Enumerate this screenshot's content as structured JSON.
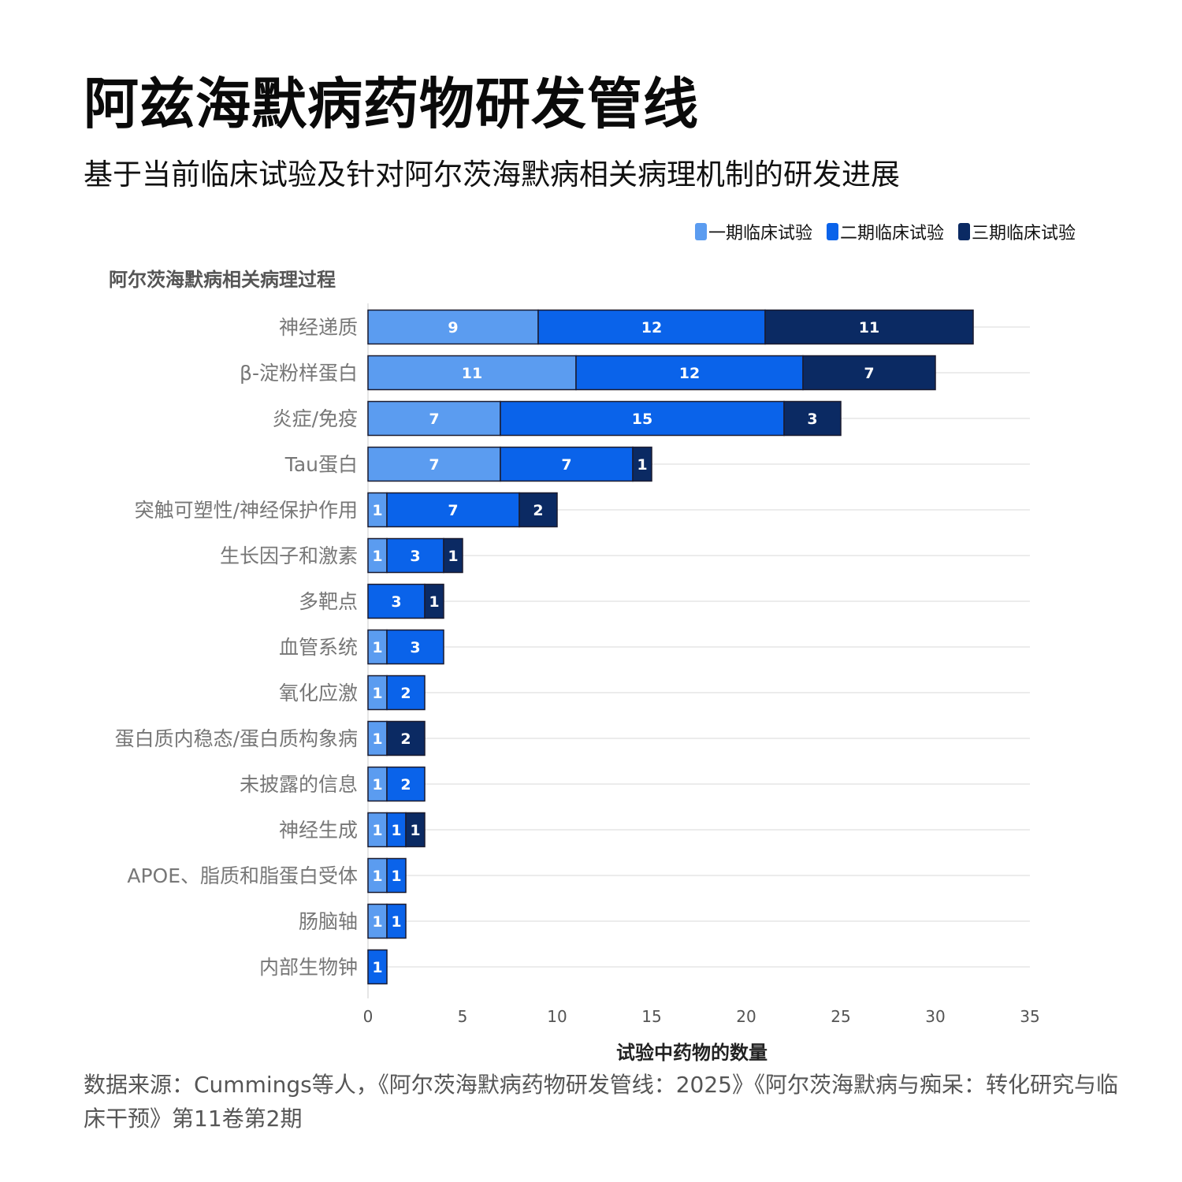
{
  "header": {
    "title": "阿兹海默病药物研发管线",
    "subtitle": "基于当前临床试验及针对阿尔茨海默病相关病理机制的研发进展"
  },
  "colors": {
    "phase1": "#5b9cf0",
    "phase2": "#0a63ea",
    "phase3": "#0b2a63",
    "grid": "#ececec",
    "category_text": "#777777",
    "tick_text": "#555555"
  },
  "legend": [
    {
      "label": "一期临床试验",
      "color": "#5b9cf0"
    },
    {
      "label": "二期临床试验",
      "color": "#0a63ea"
    },
    {
      "label": "三期临床试验",
      "color": "#0b2a63"
    }
  ],
  "source": "数据来源：Cummings等人，《阿尔茨海默病药物研发管线：2025》《阿尔茨海默病与痴呆：转化研究与临床干预》第11卷第2期",
  "chart_data": {
    "type": "bar",
    "orientation": "horizontal",
    "stacked": true,
    "ylabel": "阿尔茨海默病相关病理过程",
    "xlabel": "试验中药物的数量",
    "xlim": [
      0,
      35
    ],
    "xticks": [
      0,
      5,
      10,
      15,
      20,
      25,
      30,
      35
    ],
    "grid": true,
    "legend_position": "top-right",
    "categories": [
      "神经递质",
      "β-淀粉样蛋白",
      "炎症/免疫",
      "Tau蛋白",
      "突触可塑性/神经保护作用",
      "生长因子和激素",
      "多靶点",
      "血管系统",
      "氧化应激",
      "蛋白质内稳态/蛋白质构象病",
      "未披露的信息",
      "神经生成",
      "APOE、脂质和脂蛋白受体",
      "肠脑轴",
      "内部生物钟"
    ],
    "series": [
      {
        "name": "一期临床试验",
        "values": [
          9,
          11,
          7,
          7,
          1,
          1,
          0,
          1,
          1,
          1,
          1,
          1,
          1,
          1,
          0
        ]
      },
      {
        "name": "二期临床试验",
        "values": [
          12,
          12,
          15,
          7,
          7,
          3,
          3,
          3,
          2,
          0,
          2,
          1,
          1,
          1,
          1
        ]
      },
      {
        "name": "三期临床试验",
        "values": [
          11,
          7,
          3,
          1,
          2,
          1,
          1,
          0,
          0,
          2,
          0,
          1,
          0,
          0,
          0
        ]
      }
    ]
  }
}
